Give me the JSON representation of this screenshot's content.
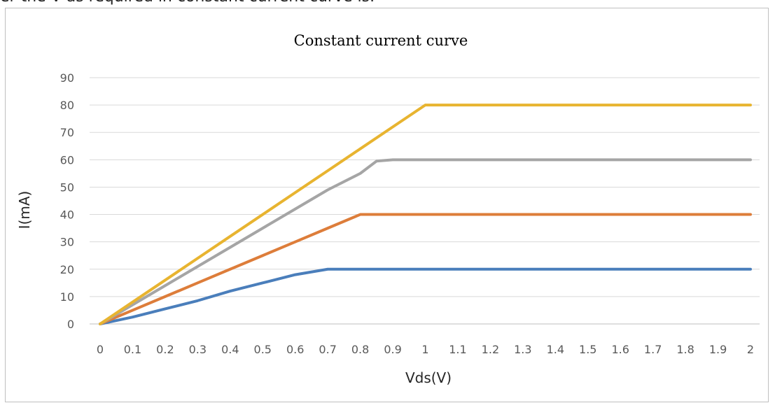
{
  "header": {
    "cut_text": "er the V as required in constant current curve is."
  },
  "chart_data": {
    "type": "line",
    "title": "Constant current curve",
    "xlabel": "Vds(V)",
    "ylabel": "I(mA)",
    "categories": [
      "0",
      "0.1",
      "0.2",
      "0.3",
      "0.4",
      "0.5",
      "0.6",
      "0.7",
      "0.8",
      "0.9",
      "1",
      "1.1",
      "1.2",
      "1.3",
      "1.4",
      "1.5",
      "1.6",
      "1.7",
      "1.8",
      "1.9",
      "2"
    ],
    "ylim": [
      0,
      90
    ],
    "yticks": [
      0,
      10,
      20,
      30,
      40,
      50,
      60,
      70,
      80,
      90
    ],
    "grid": true,
    "legend": "none",
    "series": [
      {
        "color": "#4a7ebb",
        "points": [
          [
            0,
            0
          ],
          [
            0.1,
            2.5
          ],
          [
            0.2,
            5.5
          ],
          [
            0.3,
            8.5
          ],
          [
            0.4,
            12
          ],
          [
            0.5,
            15
          ],
          [
            0.6,
            18
          ],
          [
            0.7,
            20
          ],
          [
            0.8,
            20
          ],
          [
            0.9,
            20
          ],
          [
            1,
            20
          ],
          [
            1.1,
            20
          ],
          [
            1.2,
            20
          ],
          [
            1.3,
            20
          ],
          [
            1.4,
            20
          ],
          [
            1.5,
            20
          ],
          [
            1.6,
            20
          ],
          [
            1.7,
            20
          ],
          [
            1.8,
            20
          ],
          [
            1.9,
            20
          ],
          [
            2,
            20
          ]
        ]
      },
      {
        "color": "#dd7d3a",
        "points": [
          [
            0,
            0
          ],
          [
            0.1,
            5
          ],
          [
            0.2,
            10
          ],
          [
            0.3,
            15
          ],
          [
            0.4,
            20
          ],
          [
            0.5,
            25
          ],
          [
            0.6,
            30
          ],
          [
            0.7,
            35
          ],
          [
            0.8,
            40
          ],
          [
            0.9,
            40
          ],
          [
            1,
            40
          ],
          [
            1.1,
            40
          ],
          [
            1.2,
            40
          ],
          [
            1.3,
            40
          ],
          [
            1.4,
            40
          ],
          [
            1.5,
            40
          ],
          [
            1.6,
            40
          ],
          [
            1.7,
            40
          ],
          [
            1.8,
            40
          ],
          [
            1.9,
            40
          ],
          [
            2,
            40
          ]
        ]
      },
      {
        "color": "#a5a5a5",
        "points": [
          [
            0,
            0
          ],
          [
            0.1,
            7
          ],
          [
            0.2,
            14
          ],
          [
            0.3,
            21
          ],
          [
            0.4,
            28
          ],
          [
            0.5,
            35
          ],
          [
            0.6,
            42
          ],
          [
            0.7,
            49
          ],
          [
            0.8,
            55
          ],
          [
            0.85,
            59.5
          ],
          [
            0.9,
            60
          ],
          [
            1,
            60
          ],
          [
            1.1,
            60
          ],
          [
            1.2,
            60
          ],
          [
            1.3,
            60
          ],
          [
            1.4,
            60
          ],
          [
            1.5,
            60
          ],
          [
            1.6,
            60
          ],
          [
            1.7,
            60
          ],
          [
            1.8,
            60
          ],
          [
            1.9,
            60
          ],
          [
            2,
            60
          ]
        ]
      },
      {
        "color": "#e8b430",
        "points": [
          [
            0,
            0
          ],
          [
            0.1,
            8
          ],
          [
            0.2,
            16
          ],
          [
            0.3,
            24
          ],
          [
            0.4,
            32
          ],
          [
            0.5,
            40
          ],
          [
            0.6,
            48
          ],
          [
            0.7,
            56
          ],
          [
            0.8,
            64
          ],
          [
            0.9,
            72
          ],
          [
            1,
            80
          ],
          [
            1.1,
            80
          ],
          [
            1.2,
            80
          ],
          [
            1.3,
            80
          ],
          [
            1.4,
            80
          ],
          [
            1.5,
            80
          ],
          [
            1.6,
            80
          ],
          [
            1.7,
            80
          ],
          [
            1.8,
            80
          ],
          [
            1.9,
            80
          ],
          [
            2,
            80
          ]
        ]
      }
    ]
  }
}
